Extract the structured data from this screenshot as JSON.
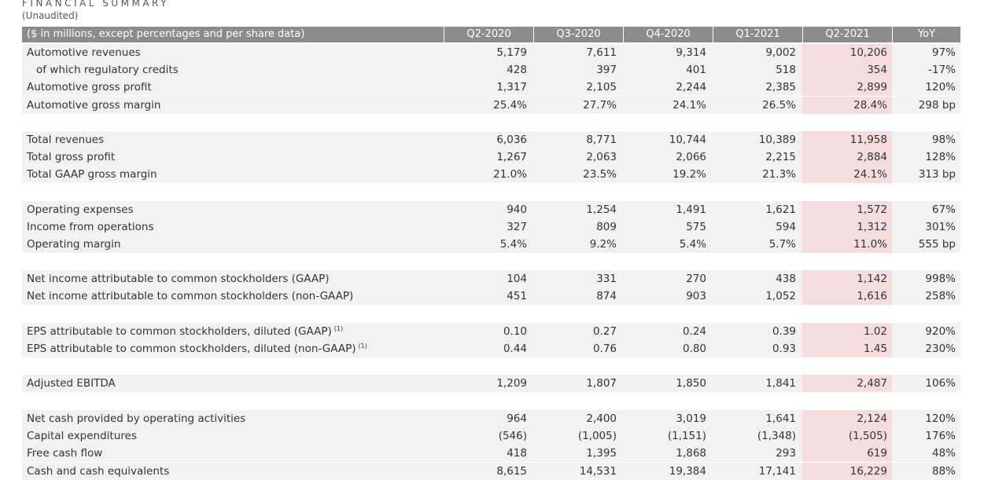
{
  "title": "FINANCIAL SUMMARY",
  "subtitle": "(Unaudited)",
  "header": {
    "label": "($ in millions, except percentages and per share data)",
    "columns": [
      "Q2-2020",
      "Q3-2020",
      "Q4-2020",
      "Q1-2021",
      "Q2-2021",
      "YoY"
    ]
  },
  "groups": [
    {
      "rows": [
        {
          "label": "Automotive revenues",
          "values": [
            "5,179",
            "7,611",
            "9,314",
            "9,002",
            "10,206",
            "97%"
          ]
        },
        {
          "label": "of which regulatory credits",
          "indent": true,
          "values": [
            "428",
            "397",
            "401",
            "518",
            "354",
            "-17%"
          ]
        },
        {
          "label": "Automotive gross profit",
          "values": [
            "1,317",
            "2,105",
            "2,244",
            "2,385",
            "2,899",
            "120%"
          ]
        },
        {
          "label": "Automotive gross margin",
          "values": [
            "25.4%",
            "27.7%",
            "24.1%",
            "26.5%",
            "28.4%",
            "298 bp"
          ]
        }
      ]
    },
    {
      "rows": [
        {
          "label": "Total revenues",
          "values": [
            "6,036",
            "8,771",
            "10,744",
            "10,389",
            "11,958",
            "98%"
          ]
        },
        {
          "label": "Total gross profit",
          "values": [
            "1,267",
            "2,063",
            "2,066",
            "2,215",
            "2,884",
            "128%"
          ]
        },
        {
          "label": "Total GAAP gross margin",
          "values": [
            "21.0%",
            "23.5%",
            "19.2%",
            "21.3%",
            "24.1%",
            "313 bp"
          ]
        }
      ]
    },
    {
      "rows": [
        {
          "label": "Operating expenses",
          "values": [
            "940",
            "1,254",
            "1,491",
            "1,621",
            "1,572",
            "67%"
          ]
        },
        {
          "label": "Income from operations",
          "values": [
            "327",
            "809",
            "575",
            "594",
            "1,312",
            "301%"
          ]
        },
        {
          "label": "Operating margin",
          "values": [
            "5.4%",
            "9.2%",
            "5.4%",
            "5.7%",
            "11.0%",
            "555 bp"
          ]
        }
      ]
    },
    {
      "rows": [
        {
          "label": "Net income attributable to common stockholders (GAAP)",
          "values": [
            "104",
            "331",
            "270",
            "438",
            "1,142",
            "998%"
          ]
        },
        {
          "label": "Net income attributable to common stockholders (non-GAAP)",
          "values": [
            "451",
            "874",
            "903",
            "1,052",
            "1,616",
            "258%"
          ]
        }
      ]
    },
    {
      "rows": [
        {
          "label": "EPS attributable to common stockholders, diluted (GAAP)",
          "note": "(1)",
          "values": [
            "0.10",
            "0.27",
            "0.24",
            "0.39",
            "1.02",
            "920%"
          ]
        },
        {
          "label": "EPS attributable to common stockholders, diluted (non-GAAP)",
          "note": "(1)",
          "values": [
            "0.44",
            "0.76",
            "0.80",
            "0.93",
            "1.45",
            "230%"
          ]
        }
      ]
    },
    {
      "rows": [
        {
          "label": "Adjusted EBITDA",
          "values": [
            "1,209",
            "1,807",
            "1,850",
            "1,841",
            "2,487",
            "106%"
          ]
        }
      ]
    },
    {
      "rows": [
        {
          "label": "Net cash provided by operating activities",
          "values": [
            "964",
            "2,400",
            "3,019",
            "1,641",
            "2,124",
            "120%"
          ]
        },
        {
          "label": "Capital expenditures",
          "values": [
            "(546)",
            "(1,005)",
            "(1,151)",
            "(1,348)",
            "(1,505)",
            "176%"
          ]
        },
        {
          "label": "Free cash flow",
          "values": [
            "418",
            "1,395",
            "1,868",
            "293",
            "619",
            "48%"
          ]
        },
        {
          "label": "Cash and cash equivalents",
          "values": [
            "8,615",
            "14,531",
            "19,384",
            "17,141",
            "16,229",
            "88%"
          ]
        }
      ]
    }
  ],
  "colors": {
    "header_bg": "#8c8c8c",
    "row_shade": "#f2f2f2",
    "highlight": "#f5dddd"
  }
}
